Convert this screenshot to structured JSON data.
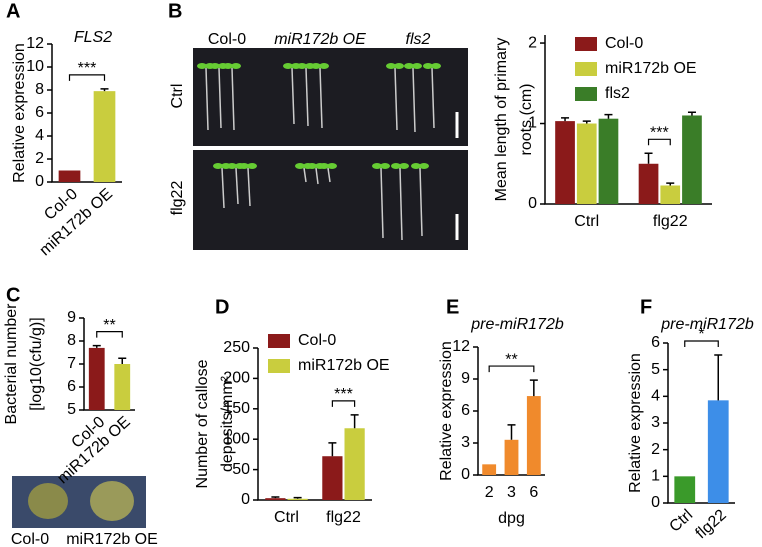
{
  "chart_data": [
    {
      "type": "bar",
      "panel_label": "A",
      "title": "FLS2",
      "y_label": "Relative expression",
      "categories": [
        "Col-0",
        "miR172b OE"
      ],
      "values": [
        1,
        7.9
      ],
      "errors": [
        0,
        0.2
      ],
      "colors": [
        "#8b1a1a",
        "#c9cd3e"
      ],
      "ylim": [
        0,
        12
      ],
      "yticks": [
        0,
        2,
        4,
        6,
        8,
        10,
        12
      ],
      "significance": {
        "label": "***",
        "from": 0,
        "to": 1
      }
    },
    {
      "type": "grouped-bar",
      "y_label": [
        "Mean length of primary",
        "roots (cm)"
      ],
      "categories": [
        "Ctrl",
        "flg22"
      ],
      "series": [
        {
          "name": "Col-0",
          "color": "#8b1a1a",
          "values": [
            1.03,
            0.5
          ],
          "errors": [
            0.04,
            0.13
          ]
        },
        {
          "name": "miR172b OE",
          "color": "#c9cd3e",
          "values": [
            1.0,
            0.23
          ],
          "errors": [
            0.03,
            0.03
          ]
        },
        {
          "name": "fls2",
          "color": "#3a7d28",
          "values": [
            1.06,
            1.1
          ],
          "errors": [
            0.05,
            0.04
          ]
        }
      ],
      "ylim": [
        0,
        2.1
      ],
      "yticks": [
        0,
        1,
        2
      ],
      "legend": "top-left",
      "significance": {
        "label": "***",
        "category": 1,
        "from": 0,
        "to": 1
      }
    },
    {
      "type": "bar",
      "panel_label": "C",
      "y_label": [
        "Bacterial number",
        "[log10(cfu/g)]"
      ],
      "categories": [
        "Col-0",
        "miR172b OE"
      ],
      "values": [
        7.7,
        7.0
      ],
      "errors": [
        0.1,
        0.25
      ],
      "colors": [
        "#8b1a1a",
        "#c9cd3e"
      ],
      "ylim": [
        5,
        9
      ],
      "yticks": [
        5,
        6,
        7,
        8,
        9
      ],
      "significance": {
        "label": "**",
        "from": 0,
        "to": 1
      }
    },
    {
      "type": "grouped-bar",
      "panel_label": "D",
      "y_label": [
        "Number of callose",
        "deposits/mm²"
      ],
      "categories": [
        "Ctrl",
        "flg22"
      ],
      "series": [
        {
          "name": "Col-0",
          "color": "#8b1a1a",
          "values": [
            3,
            72
          ],
          "errors": [
            2,
            22
          ]
        },
        {
          "name": "miR172b OE",
          "color": "#c9cd3e",
          "values": [
            2,
            118
          ],
          "errors": [
            2,
            22
          ]
        }
      ],
      "ylim": [
        0,
        250
      ],
      "yticks": [
        0,
        50,
        100,
        150,
        200,
        250
      ],
      "legend": "top-left",
      "significance": {
        "label": "***",
        "category": 1,
        "from": 0,
        "to": 1
      }
    },
    {
      "type": "bar",
      "panel_label": "E",
      "title": "pre-miR172b",
      "y_label": "Relative expression",
      "x_label": "dpg",
      "categories": [
        "2",
        "3",
        "6"
      ],
      "values": [
        1,
        3.3,
        7.4
      ],
      "errors": [
        0,
        1.4,
        1.5
      ],
      "colors": [
        "#f08a2c",
        "#f08a2c",
        "#f08a2c"
      ],
      "ylim": [
        0,
        12
      ],
      "yticks": [
        0,
        3,
        6,
        9,
        12
      ],
      "significance": {
        "label": "**",
        "from": 0,
        "to": 2
      }
    },
    {
      "type": "bar",
      "panel_label": "F",
      "title": "pre-miR172b",
      "y_label": "Relative expression",
      "categories": [
        "Ctrl",
        "flg22"
      ],
      "values": [
        1,
        3.85
      ],
      "errors": [
        0,
        1.7
      ],
      "colors": [
        "#3a9a2a",
        "#3d8ee8"
      ],
      "ylim": [
        0,
        6
      ],
      "yticks": [
        0,
        1,
        2,
        3,
        4,
        5,
        6
      ],
      "significance": {
        "label": "*",
        "from": 0,
        "to": 1
      }
    }
  ],
  "images": [
    {
      "panel_label": "B",
      "columns": [
        "Col-0",
        "miR172b OE",
        "fls2"
      ],
      "rows": [
        "Ctrl",
        "flg22"
      ]
    },
    {
      "labels": [
        "Col-0",
        "miR172b OE"
      ]
    }
  ]
}
